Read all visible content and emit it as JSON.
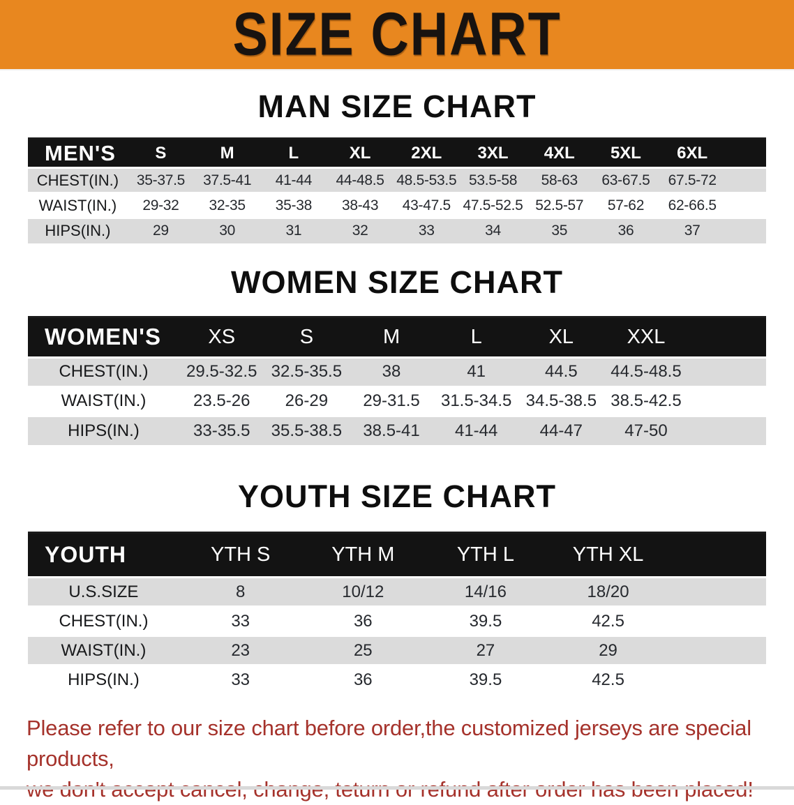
{
  "banner": {
    "title": "SIZE CHART",
    "bg_color": "#E8871F",
    "text_color": "#181310"
  },
  "sections": [
    {
      "heading": "MAN SIZE CHART",
      "table": {
        "header_label": "MEN'S",
        "columns": [
          "S",
          "M",
          "L",
          "XL",
          "2XL",
          "3XL",
          "4XL",
          "5XL",
          "6XL"
        ],
        "rows": [
          {
            "label": "CHEST(IN.)",
            "values": [
              "35-37.5",
              "37.5-41",
              "41-44",
              "44-48.5",
              "48.5-53.5",
              "53.5-58",
              "58-63",
              "63-67.5",
              "67.5-72"
            ]
          },
          {
            "label": "WAIST(IN.)",
            "values": [
              "29-32",
              "32-35",
              "35-38",
              "38-43",
              "43-47.5",
              "47.5-52.5",
              "52.5-57",
              "57-62",
              "62-66.5"
            ]
          },
          {
            "label": "HIPS(IN.)",
            "values": [
              "29",
              "30",
              "31",
              "32",
              "33",
              "34",
              "35",
              "36",
              "37"
            ]
          }
        ]
      }
    },
    {
      "heading": "WOMEN SIZE CHART",
      "table": {
        "header_label": "WOMEN'S",
        "columns": [
          "XS",
          "S",
          "M",
          "L",
          "XL",
          "XXL"
        ],
        "rows": [
          {
            "label": "CHEST(IN.)",
            "values": [
              "29.5-32.5",
              "32.5-35.5",
              "38",
              "41",
              "44.5",
              "44.5-48.5"
            ]
          },
          {
            "label": "WAIST(IN.)",
            "values": [
              "23.5-26",
              "26-29",
              "29-31.5",
              "31.5-34.5",
              "34.5-38.5",
              "38.5-42.5"
            ]
          },
          {
            "label": "HIPS(IN.)",
            "values": [
              "33-35.5",
              "35.5-38.5",
              "38.5-41",
              "41-44",
              "44-47",
              "47-50"
            ]
          }
        ]
      }
    },
    {
      "heading": "YOUTH SIZE CHART",
      "table": {
        "header_label": "YOUTH",
        "columns": [
          "YTH S",
          "YTH M",
          "YTH L",
          "YTH XL"
        ],
        "rows": [
          {
            "label": "U.S.SIZE",
            "values": [
              "8",
              "10/12",
              "14/16",
              "18/20"
            ]
          },
          {
            "label": "CHEST(IN.)",
            "values": [
              "33",
              "36",
              "39.5",
              "42.5"
            ]
          },
          {
            "label": "WAIST(IN.)",
            "values": [
              "23",
              "25",
              "27",
              "29"
            ]
          },
          {
            "label": "HIPS(IN.)",
            "values": [
              "33",
              "36",
              "39.5",
              "42.5"
            ]
          }
        ]
      }
    }
  ],
  "table_colors": {
    "header_bg": "#131313",
    "header_text": "#ffffff",
    "row_alt_bg": "#DBDBDB"
  },
  "disclaimer": {
    "line1": "Please refer to our size chart before order,the customized jerseys are special products,",
    "line2": "we don't accept cancel, change, teturn or refund after order has been placed!",
    "color": "#A5322B"
  }
}
